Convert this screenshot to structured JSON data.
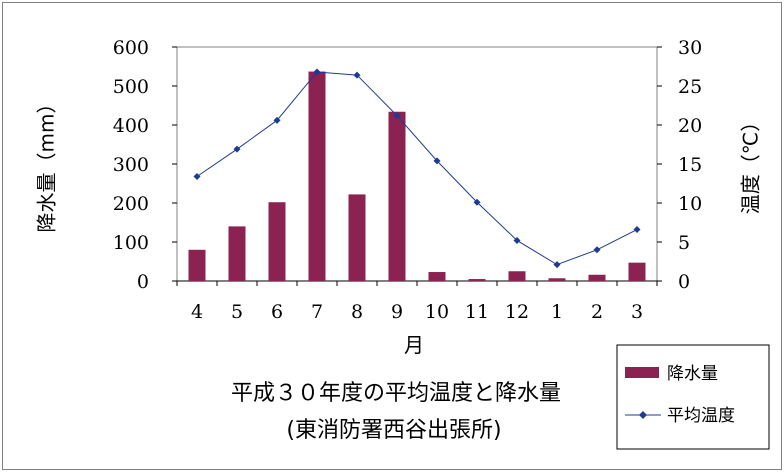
{
  "chart_data": {
    "type": "bar+line",
    "title": "平成３０年度の平均温度と降水量",
    "subtitle": "(東消防署西谷出張所)",
    "xlabel": "月",
    "ylabel_left": "降水量（mm）",
    "ylabel_right": "温度（℃）",
    "categories": [
      "4",
      "5",
      "6",
      "7",
      "8",
      "9",
      "10",
      "11",
      "12",
      "1",
      "2",
      "3"
    ],
    "ylim_left": [
      0,
      600
    ],
    "yticks_left": [
      "0",
      "100",
      "200",
      "300",
      "400",
      "500",
      "600"
    ],
    "ylim_right": [
      0,
      30
    ],
    "yticks_right": [
      "0",
      "5",
      "10",
      "15",
      "20",
      "25",
      "30"
    ],
    "grid": false,
    "legend_position": "bottom-right",
    "series": [
      {
        "name": "降水量",
        "type": "bar",
        "axis": "left",
        "color": "#8b2252",
        "values": [
          80,
          140,
          202,
          537,
          222,
          434,
          23,
          5,
          25,
          7,
          16,
          47
        ]
      },
      {
        "name": "平均温度",
        "type": "line",
        "axis": "right",
        "color": "#1f3a93",
        "marker": "diamond",
        "values": [
          13.4,
          16.9,
          20.6,
          26.8,
          26.4,
          21.2,
          15.4,
          10.1,
          5.2,
          2.1,
          4.0,
          6.6
        ]
      }
    ]
  }
}
